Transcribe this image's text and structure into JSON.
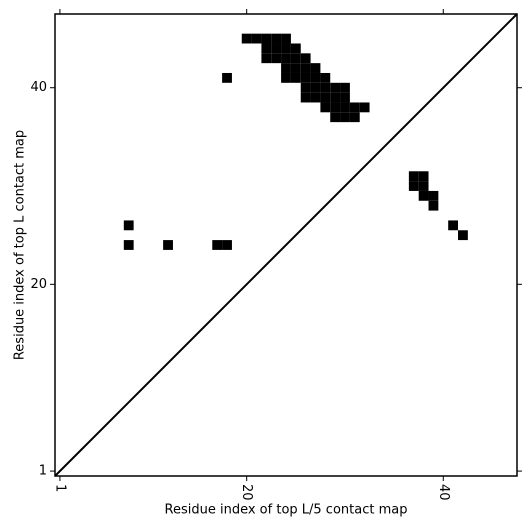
{
  "chart_data": {
    "type": "contact_map",
    "xlabel": "Residue index of top L/5 contact map",
    "ylabel": "Residue index of top L contact map",
    "xlim": [
      0.5,
      47.5
    ],
    "ylim": [
      0.5,
      47.5
    ],
    "xticks": [
      1,
      20,
      40
    ],
    "yticks": [
      1,
      20,
      40
    ],
    "color": "#000000",
    "diagonal": true,
    "x": [
      20,
      21,
      22,
      23,
      24,
      22,
      23,
      24,
      25,
      22,
      23,
      24,
      25,
      26,
      24,
      25,
      26,
      27,
      18,
      24,
      25,
      26,
      27,
      28,
      26,
      27,
      28,
      29,
      30,
      26,
      27,
      28,
      29,
      30,
      28,
      29,
      30,
      31,
      32,
      29,
      30,
      31,
      37,
      38,
      37,
      38,
      38,
      39,
      39,
      8,
      41,
      42,
      8,
      12,
      17,
      18
    ],
    "y": [
      45,
      45,
      45,
      45,
      45,
      44,
      44,
      44,
      44,
      43,
      43,
      43,
      43,
      43,
      42,
      42,
      42,
      42,
      41,
      41,
      41,
      41,
      41,
      41,
      40,
      40,
      40,
      40,
      40,
      39,
      39,
      39,
      39,
      39,
      38,
      38,
      38,
      38,
      38,
      37,
      37,
      37,
      31,
      31,
      30,
      30,
      29,
      29,
      28,
      26,
      26,
      25,
      24,
      24,
      24,
      24
    ]
  }
}
